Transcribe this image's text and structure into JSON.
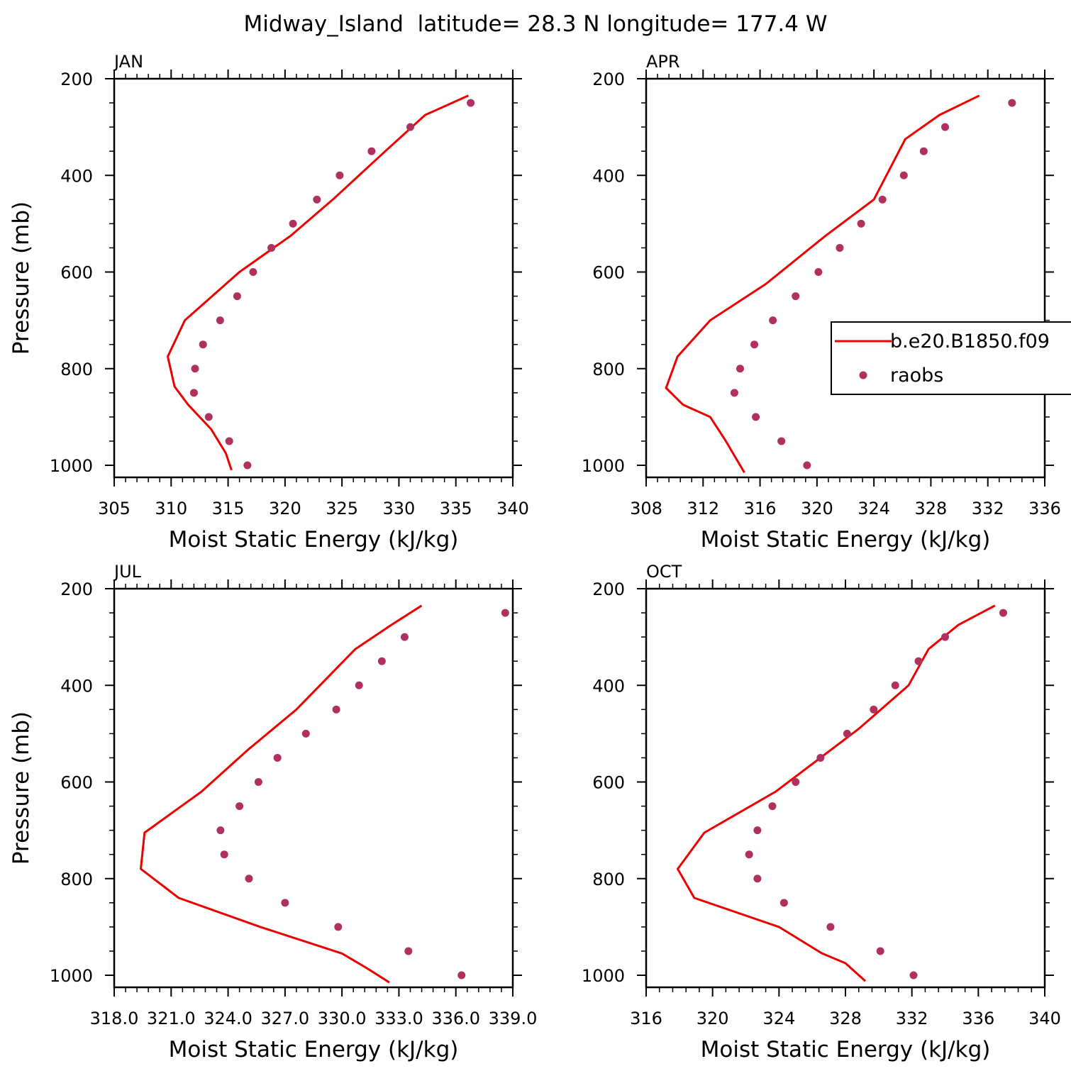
{
  "title": "Midway_Island  latitude= 28.3 N longitude= 177.4 W",
  "colors": {
    "model": "#ee0000",
    "obs": "#b03060",
    "axes": "#000000"
  },
  "legend": {
    "placement": "inside-right (APR panel)",
    "entries": [
      "b.e20.B1850.f09",
      "raobs"
    ]
  },
  "chart_data": [
    {
      "type": "line+scatter",
      "panel": "JAN",
      "xlabel": "Moist Static Energy (kJ/kg)",
      "ylabel": "Pressure (mb)",
      "xlim": [
        305,
        340
      ],
      "ylim": [
        1000,
        200
      ],
      "xticks": [
        "305",
        "310",
        "315",
        "320",
        "325",
        "330",
        "335",
        "340"
      ],
      "yticks": [
        "200",
        "400",
        "600",
        "800",
        "1000"
      ],
      "series": [
        {
          "name": "b.e20.B1850.f09",
          "style": "line",
          "x": [
            315.3,
            314.8,
            313.5,
            311.5,
            310.3,
            309.7,
            311.2,
            316.0,
            320.5,
            324.2,
            328.8,
            332.3,
            336.1
          ],
          "y": [
            1010,
            975,
            925,
            875,
            837,
            775,
            700,
            600,
            525,
            450,
            350,
            275,
            235
          ]
        },
        {
          "name": "raobs",
          "style": "markers",
          "x": [
            316.7,
            315.1,
            313.3,
            312.0,
            312.1,
            312.8,
            314.3,
            315.8,
            317.2,
            318.8,
            320.7,
            322.8,
            324.8,
            327.6,
            331.0,
            336.3
          ],
          "y": [
            1000,
            950,
            900,
            850,
            800,
            750,
            700,
            650,
            600,
            550,
            500,
            450,
            400,
            350,
            300,
            250
          ]
        }
      ]
    },
    {
      "type": "line+scatter",
      "panel": "APR",
      "xlabel": "Moist Static Energy (kJ/kg)",
      "ylabel": "",
      "xlim": [
        308,
        336
      ],
      "ylim": [
        1000,
        200
      ],
      "xticks": [
        "308",
        "312",
        "316",
        "320",
        "324",
        "328",
        "332",
        "336"
      ],
      "yticks": [
        "200",
        "400",
        "600",
        "800",
        "1000"
      ],
      "series": [
        {
          "name": "b.e20.B1850.f09",
          "style": "line",
          "x": [
            314.9,
            314.1,
            313.6,
            312.5,
            310.6,
            309.4,
            310.2,
            312.5,
            316.4,
            320.6,
            324.0,
            326.2,
            328.6,
            331.4
          ],
          "y": [
            1015,
            975,
            950,
            900,
            875,
            840,
            775,
            700,
            625,
            525,
            450,
            325,
            275,
            235
          ]
        },
        {
          "name": "raobs",
          "style": "markers",
          "x": [
            319.3,
            317.5,
            315.7,
            314.2,
            314.6,
            315.6,
            316.9,
            318.5,
            320.1,
            321.6,
            323.1,
            324.6,
            326.1,
            327.5,
            329.0,
            333.7
          ],
          "y": [
            1000,
            950,
            900,
            850,
            800,
            750,
            700,
            650,
            600,
            550,
            500,
            450,
            400,
            350,
            300,
            250
          ]
        }
      ]
    },
    {
      "type": "line+scatter",
      "panel": "JUL",
      "xlabel": "Moist Static Energy (kJ/kg)",
      "ylabel": "Pressure (mb)",
      "xlim": [
        318.0,
        339.0
      ],
      "ylim": [
        1000,
        200
      ],
      "xticks": [
        "318.0",
        "321.0",
        "324.0",
        "327.0",
        "330.0",
        "333.0",
        "336.0",
        "339.0"
      ],
      "yticks": [
        "200",
        "400",
        "600",
        "800",
        "1000"
      ],
      "series": [
        {
          "name": "b.e20.B1850.f09",
          "style": "line",
          "x": [
            332.5,
            331.3,
            330.0,
            325.7,
            321.4,
            319.4,
            319.6,
            322.6,
            325.0,
            327.6,
            330.7,
            332.6,
            334.2
          ],
          "y": [
            1015,
            985,
            955,
            900,
            840,
            780,
            705,
            620,
            535,
            450,
            325,
            275,
            235
          ]
        },
        {
          "name": "raobs",
          "style": "markers",
          "x": [
            336.3,
            333.5,
            329.8,
            327.0,
            325.1,
            323.8,
            323.6,
            324.6,
            325.6,
            326.6,
            328.1,
            329.7,
            330.9,
            332.1,
            333.3,
            338.6
          ],
          "y": [
            1000,
            950,
            900,
            850,
            800,
            750,
            700,
            650,
            600,
            550,
            500,
            450,
            400,
            350,
            300,
            250
          ]
        }
      ]
    },
    {
      "type": "line+scatter",
      "panel": "OCT",
      "xlabel": "Moist Static Energy (kJ/kg)",
      "ylabel": "",
      "xlim": [
        316,
        340
      ],
      "ylim": [
        1000,
        200
      ],
      "xticks": [
        "316",
        "320",
        "324",
        "328",
        "332",
        "336",
        "340"
      ],
      "yticks": [
        "200",
        "400",
        "600",
        "800",
        "1000"
      ],
      "series": [
        {
          "name": "b.e20.B1850.f09",
          "style": "line",
          "x": [
            329.2,
            328.0,
            326.6,
            324.0,
            318.9,
            317.9,
            319.5,
            323.8,
            328.8,
            331.8,
            333.0,
            334.8,
            337.0
          ],
          "y": [
            1012,
            975,
            955,
            900,
            840,
            780,
            705,
            620,
            490,
            400,
            325,
            275,
            235
          ]
        },
        {
          "name": "raobs",
          "style": "markers",
          "x": [
            332.1,
            330.1,
            327.1,
            324.3,
            322.7,
            322.2,
            322.7,
            323.6,
            325.0,
            326.5,
            328.1,
            329.7,
            331.0,
            332.4,
            334.0,
            337.5
          ],
          "y": [
            1000,
            950,
            900,
            850,
            800,
            750,
            700,
            650,
            600,
            550,
            500,
            450,
            400,
            350,
            300,
            250
          ]
        }
      ]
    }
  ]
}
